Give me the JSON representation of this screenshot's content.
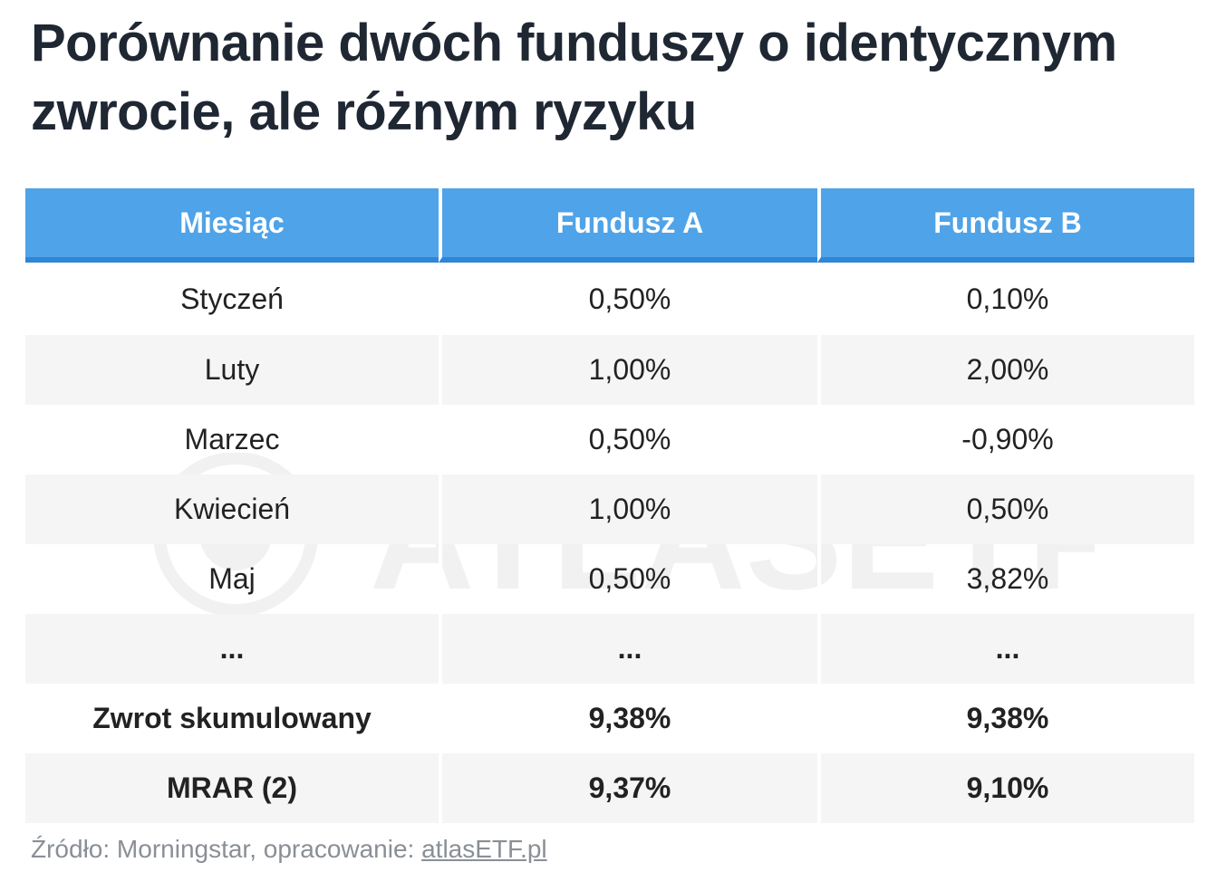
{
  "title": {
    "line1": "Porównanie dwóch funduszy o identycznym",
    "line2": "zwrocie, ale różnym ryzyku"
  },
  "table": {
    "headers": [
      "Miesiąc",
      "Fundusz A",
      "Fundusz B"
    ],
    "rows": [
      [
        "Styczeń",
        "0,50%",
        "0,10%"
      ],
      [
        "Luty",
        "1,00%",
        "2,00%"
      ],
      [
        "Marzec",
        "0,50%",
        "-0,90%"
      ],
      [
        "Kwiecień",
        "1,00%",
        "0,50%"
      ],
      [
        "Maj",
        "0,50%",
        "3,82%"
      ],
      [
        "...",
        "...",
        "..."
      ],
      [
        "Zwrot skumulowany",
        "9,38%",
        "9,38%"
      ],
      [
        "MRAR (2)",
        "9,37%",
        "9,10%"
      ]
    ]
  },
  "source": {
    "prefix": "Źródło: Morningstar, opracowanie: ",
    "link": "atlasETF.pl"
  },
  "watermark": {
    "text": "ATLASETF",
    "icon": "atlasetf-logo-icon"
  },
  "colors": {
    "header_bg": "#4fa3e8",
    "header_border": "#2f86d6",
    "stripe": "#f5f5f5",
    "title": "#1f2733"
  }
}
